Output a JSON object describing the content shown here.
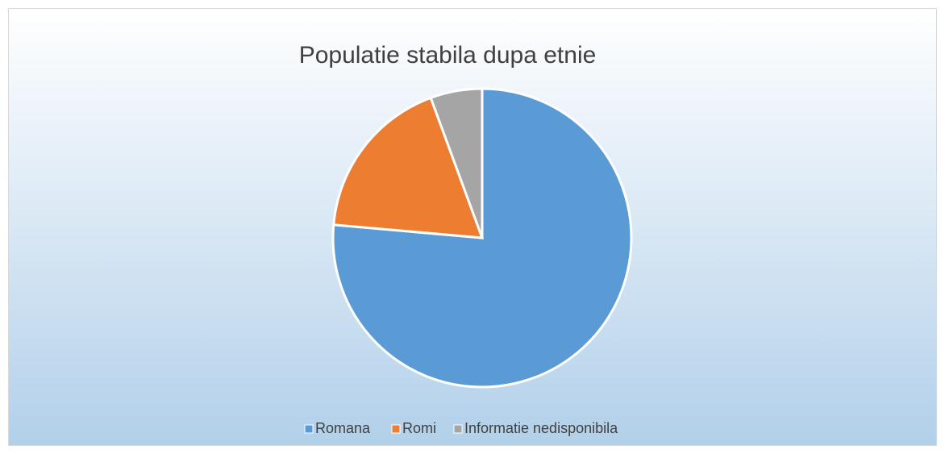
{
  "chart_data": {
    "type": "pie",
    "title": "Populatie stabila dupa etnie",
    "categories": [
      "Romana",
      "Romi",
      "Informatie nedisponibila"
    ],
    "values": [
      76.4,
      18.0,
      5.6
    ],
    "colors": [
      "#5b9bd5",
      "#ed7d31",
      "#a5a5a5"
    ],
    "legend": "bottom"
  }
}
